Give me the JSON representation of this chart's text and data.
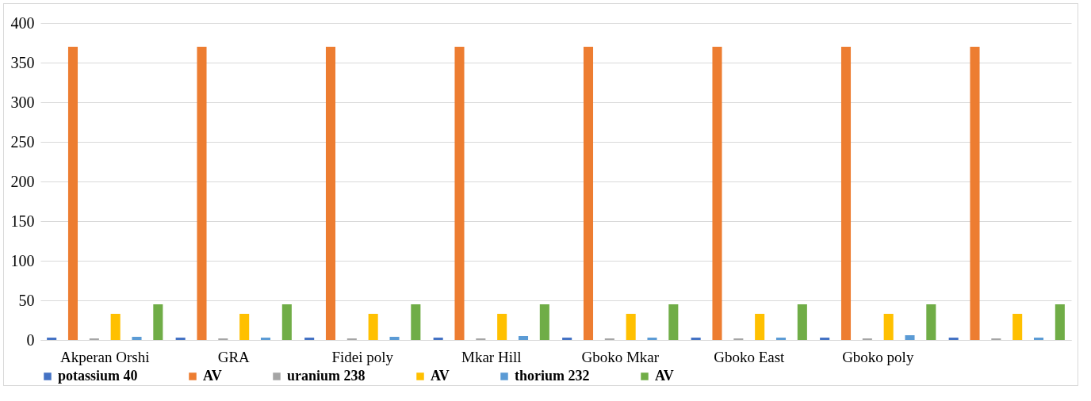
{
  "chart_data": {
    "type": "bar",
    "categories": [
      "Akperan Orshi",
      "GRA",
      "Fidei poly",
      "Mkar Hill",
      "Gboko Mkar",
      "Gboko East",
      "Gboko poly",
      null
    ],
    "series": [
      {
        "name": "potassium 40",
        "color": "#4472c4",
        "values": [
          3,
          3,
          3,
          3,
          3,
          3,
          3,
          3
        ]
      },
      {
        "name": "AV",
        "color": "#ed7d31",
        "values": [
          370,
          370,
          370,
          370,
          370,
          370,
          370,
          370
        ]
      },
      {
        "name": "uranium 238",
        "color": "#a5a5a5",
        "values": [
          2,
          2,
          2,
          2,
          2,
          2,
          2,
          2
        ]
      },
      {
        "name": "AV",
        "color": "#ffc000",
        "values": [
          33,
          33,
          33,
          33,
          33,
          33,
          33,
          33
        ]
      },
      {
        "name": "thorium 232",
        "color": "#5b9bd5",
        "values": [
          4,
          3,
          4,
          5,
          3,
          3,
          6,
          3
        ]
      },
      {
        "name": "AV",
        "color": "#70ad47",
        "values": [
          45,
          45,
          45,
          45,
          45,
          45,
          45,
          45
        ]
      }
    ],
    "ylim": [
      0,
      400
    ],
    "yticks": [
      0,
      50,
      100,
      150,
      200,
      250,
      300,
      350,
      400
    ],
    "grid": "y",
    "legend": "bottom"
  }
}
